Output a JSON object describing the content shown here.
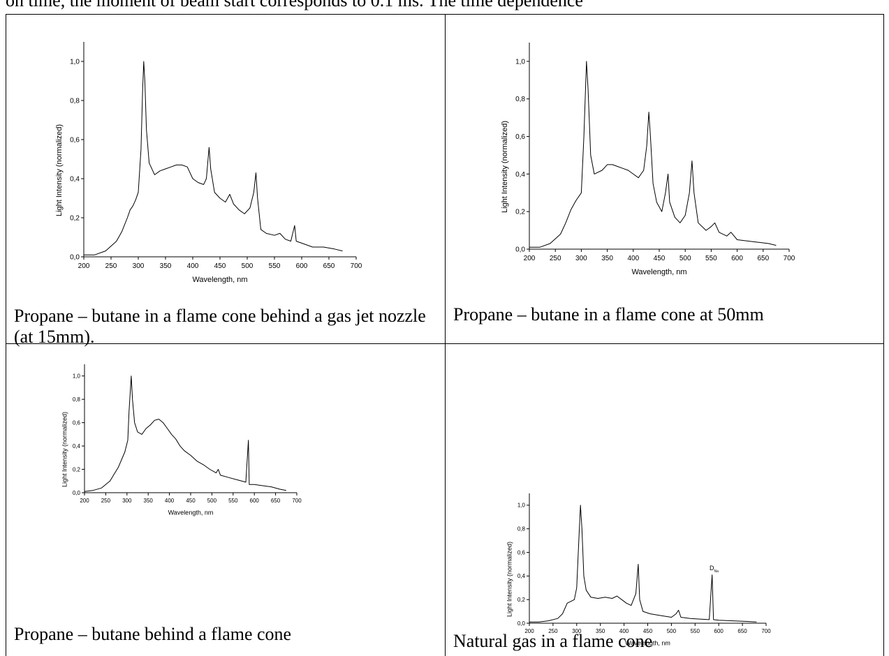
{
  "top_text": "on time, the moment of beam start corresponds to 0.1 ms. The time dependence",
  "captions": [
    "Propane – butane in a flame cone behind a gas jet nozzle (at 15mm).",
    "Propane – butane in a flame cone at 50mm",
    "Propane – butane behind a flame cone",
    "Natural gas in a flame cone"
  ],
  "chart_data": [
    {
      "type": "line",
      "x_label": "Wavelength, nm",
      "y_label": "Light Intensity (normalized)",
      "color": "#000000",
      "xlim": [
        200,
        700
      ],
      "ylim": [
        0,
        1.1
      ],
      "xticks": [
        200,
        250,
        300,
        350,
        400,
        450,
        500,
        550,
        600,
        650,
        700
      ],
      "yticks": [
        {
          "value": 0,
          "label": "0,0"
        },
        {
          "value": 0.2,
          "label": "0,2"
        },
        {
          "value": 0.4,
          "label": "0,4"
        },
        {
          "value": 0.6,
          "label": "0,6"
        },
        {
          "value": 0.8,
          "label": "0,8"
        },
        {
          "value": 1.0,
          "label": "1,0"
        }
      ],
      "x": [
        200,
        220,
        240,
        260,
        270,
        280,
        285,
        290,
        295,
        300,
        305,
        308,
        310,
        312,
        315,
        320,
        330,
        340,
        350,
        360,
        370,
        380,
        390,
        400,
        410,
        420,
        425,
        430,
        433,
        440,
        450,
        460,
        468,
        475,
        485,
        495,
        505,
        512,
        516,
        519,
        525,
        535,
        550,
        560,
        570,
        580,
        587,
        590,
        600,
        620,
        640,
        660,
        675
      ],
      "values": [
        0.01,
        0.01,
        0.03,
        0.08,
        0.13,
        0.2,
        0.24,
        0.26,
        0.29,
        0.33,
        0.55,
        0.85,
        1.0,
        0.9,
        0.65,
        0.48,
        0.42,
        0.44,
        0.45,
        0.46,
        0.47,
        0.47,
        0.46,
        0.4,
        0.38,
        0.37,
        0.4,
        0.56,
        0.45,
        0.33,
        0.3,
        0.28,
        0.32,
        0.27,
        0.24,
        0.22,
        0.25,
        0.33,
        0.43,
        0.3,
        0.14,
        0.12,
        0.11,
        0.12,
        0.09,
        0.08,
        0.16,
        0.08,
        0.07,
        0.05,
        0.05,
        0.04,
        0.03
      ]
    },
    {
      "type": "line",
      "x_label": "Wavelength, nm",
      "y_label": "Light Intensity (normalized)",
      "color": "#000000",
      "xlim": [
        200,
        700
      ],
      "ylim": [
        0,
        1.1
      ],
      "xticks": [
        200,
        250,
        300,
        350,
        400,
        450,
        500,
        550,
        600,
        650,
        700
      ],
      "yticks": [
        {
          "value": 0,
          "label": "0,0"
        },
        {
          "value": 0.2,
          "label": "0,2"
        },
        {
          "value": 0.4,
          "label": "0,4"
        },
        {
          "value": 0.6,
          "label": "0,6"
        },
        {
          "value": 0.8,
          "label": "0,8"
        },
        {
          "value": 1.0,
          "label": "1,0"
        }
      ],
      "x": [
        200,
        220,
        240,
        260,
        270,
        280,
        290,
        300,
        305,
        310,
        313,
        318,
        325,
        340,
        350,
        360,
        370,
        380,
        390,
        400,
        410,
        420,
        426,
        430,
        433,
        438,
        445,
        455,
        462,
        467,
        470,
        480,
        490,
        500,
        508,
        513,
        517,
        525,
        540,
        550,
        557,
        565,
        580,
        588,
        600,
        630,
        660,
        675
      ],
      "values": [
        0.01,
        0.01,
        0.03,
        0.08,
        0.14,
        0.21,
        0.26,
        0.3,
        0.6,
        1.0,
        0.85,
        0.5,
        0.4,
        0.42,
        0.45,
        0.45,
        0.44,
        0.43,
        0.42,
        0.4,
        0.38,
        0.42,
        0.55,
        0.73,
        0.6,
        0.35,
        0.25,
        0.2,
        0.3,
        0.4,
        0.25,
        0.17,
        0.14,
        0.18,
        0.3,
        0.47,
        0.3,
        0.14,
        0.1,
        0.12,
        0.14,
        0.09,
        0.07,
        0.09,
        0.05,
        0.04,
        0.03,
        0.02
      ]
    },
    {
      "type": "line",
      "x_label": "Wavelength, nm",
      "y_label": "Light Intensity (normalized)",
      "color": "#000000",
      "xlim": [
        200,
        700
      ],
      "ylim": [
        0,
        1.1
      ],
      "xticks": [
        200,
        250,
        300,
        350,
        400,
        450,
        500,
        550,
        600,
        650,
        700
      ],
      "yticks": [
        {
          "value": 0,
          "label": "0,0"
        },
        {
          "value": 0.2,
          "label": "0,2"
        },
        {
          "value": 0.4,
          "label": "0,4"
        },
        {
          "value": 0.6,
          "label": "0,6"
        },
        {
          "value": 0.8,
          "label": "0,8"
        },
        {
          "value": 1.0,
          "label": "1,0"
        }
      ],
      "x": [
        200,
        220,
        240,
        260,
        280,
        295,
        302,
        305,
        308,
        310,
        313,
        318,
        325,
        335,
        345,
        355,
        365,
        375,
        385,
        395,
        405,
        415,
        425,
        435,
        450,
        465,
        480,
        495,
        510,
        515,
        520,
        540,
        560,
        580,
        586,
        588,
        600,
        620,
        640,
        660,
        675
      ],
      "values": [
        0.01,
        0.02,
        0.04,
        0.1,
        0.22,
        0.35,
        0.45,
        0.7,
        0.88,
        1.0,
        0.8,
        0.6,
        0.52,
        0.5,
        0.55,
        0.58,
        0.62,
        0.63,
        0.6,
        0.55,
        0.5,
        0.46,
        0.4,
        0.36,
        0.32,
        0.27,
        0.24,
        0.2,
        0.17,
        0.2,
        0.15,
        0.13,
        0.11,
        0.09,
        0.45,
        0.07,
        0.07,
        0.06,
        0.05,
        0.03,
        0.02
      ]
    },
    {
      "type": "line",
      "x_label": "Wavelength, nm",
      "y_label": "Light Intensity (normalized)",
      "color": "#000000",
      "xlim": [
        200,
        700
      ],
      "ylim": [
        0,
        1.1
      ],
      "xticks": [
        200,
        250,
        300,
        350,
        400,
        450,
        500,
        550,
        600,
        650,
        700
      ],
      "yticks": [
        {
          "value": 0,
          "label": "0,0"
        },
        {
          "value": 0.2,
          "label": "0,2"
        },
        {
          "value": 0.4,
          "label": "0,4"
        },
        {
          "value": 0.6,
          "label": "0,6"
        },
        {
          "value": 0.8,
          "label": "0,8"
        },
        {
          "value": 1.0,
          "label": "1,0"
        }
      ],
      "x": [
        200,
        220,
        240,
        260,
        270,
        280,
        290,
        295,
        300,
        305,
        308,
        311,
        315,
        320,
        330,
        345,
        360,
        375,
        385,
        395,
        405,
        415,
        425,
        430,
        433,
        440,
        455,
        470,
        485,
        500,
        510,
        515,
        520,
        540,
        560,
        580,
        586,
        589,
        600,
        630,
        660,
        680
      ],
      "values": [
        0.01,
        0.01,
        0.02,
        0.04,
        0.08,
        0.17,
        0.19,
        0.2,
        0.3,
        0.75,
        1.0,
        0.8,
        0.4,
        0.28,
        0.22,
        0.21,
        0.22,
        0.21,
        0.23,
        0.2,
        0.17,
        0.15,
        0.25,
        0.5,
        0.2,
        0.1,
        0.08,
        0.07,
        0.06,
        0.05,
        0.08,
        0.11,
        0.05,
        0.04,
        0.035,
        0.03,
        0.41,
        0.03,
        0.025,
        0.02,
        0.015,
        0.01
      ],
      "annotation": {
        "text": "D",
        "sub": "Na",
        "x": 590,
        "y": 0.45
      }
    }
  ]
}
